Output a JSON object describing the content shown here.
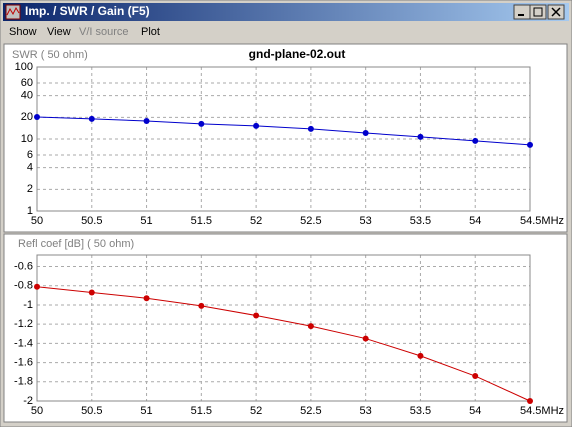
{
  "window": {
    "title": "Imp. / SWR / Gain  (F5)",
    "menu": [
      "Show",
      "View",
      "V/I source",
      "Plot"
    ]
  },
  "chart_data": [
    {
      "type": "line",
      "title": "gnd-plane-02.out",
      "y_label": "SWR ( 50 ohm)",
      "log_y": true,
      "grid": true,
      "x": [
        50,
        50.5,
        51,
        51.5,
        52,
        52.5,
        53,
        53.5,
        54,
        54.5
      ],
      "series": [
        {
          "name": "SWR",
          "color": "#0000cc",
          "values": [
            20.2,
            19.0,
            17.8,
            16.2,
            15.2,
            13.8,
            12.1,
            10.7,
            9.4,
            8.3
          ]
        }
      ],
      "xlim": [
        50,
        54.5
      ],
      "xticks": [
        50,
        50.5,
        51,
        51.5,
        52,
        52.5,
        53,
        53.5,
        54,
        {
          "value": 54.5,
          "label": "54.5MHz"
        }
      ],
      "ylim": [
        1,
        100
      ],
      "yticks": [
        1,
        2,
        4,
        6,
        10,
        20,
        40,
        60,
        100
      ]
    },
    {
      "type": "line",
      "y_label": "Refl coef [dB] ( 50 ohm)",
      "grid": true,
      "x": [
        50,
        50.5,
        51,
        51.5,
        52,
        52.5,
        53,
        53.5,
        54,
        54.5
      ],
      "series": [
        {
          "name": "Refl coef",
          "color": "#cc0000",
          "values": [
            -0.81,
            -0.87,
            -0.93,
            -1.01,
            -1.11,
            -1.22,
            -1.35,
            -1.53,
            -1.74,
            -2.0
          ]
        }
      ],
      "xlim": [
        50,
        54.5
      ],
      "xticks": [
        50,
        50.5,
        51,
        51.5,
        52,
        52.5,
        53,
        53.5,
        54,
        {
          "value": 54.5,
          "label": "54.5MHz"
        }
      ],
      "ylim": [
        -2,
        -0.48
      ],
      "yticks": [
        -2,
        -1.8,
        -1.6,
        -1.4,
        -1.2,
        -1,
        -0.8,
        -0.6
      ]
    }
  ]
}
